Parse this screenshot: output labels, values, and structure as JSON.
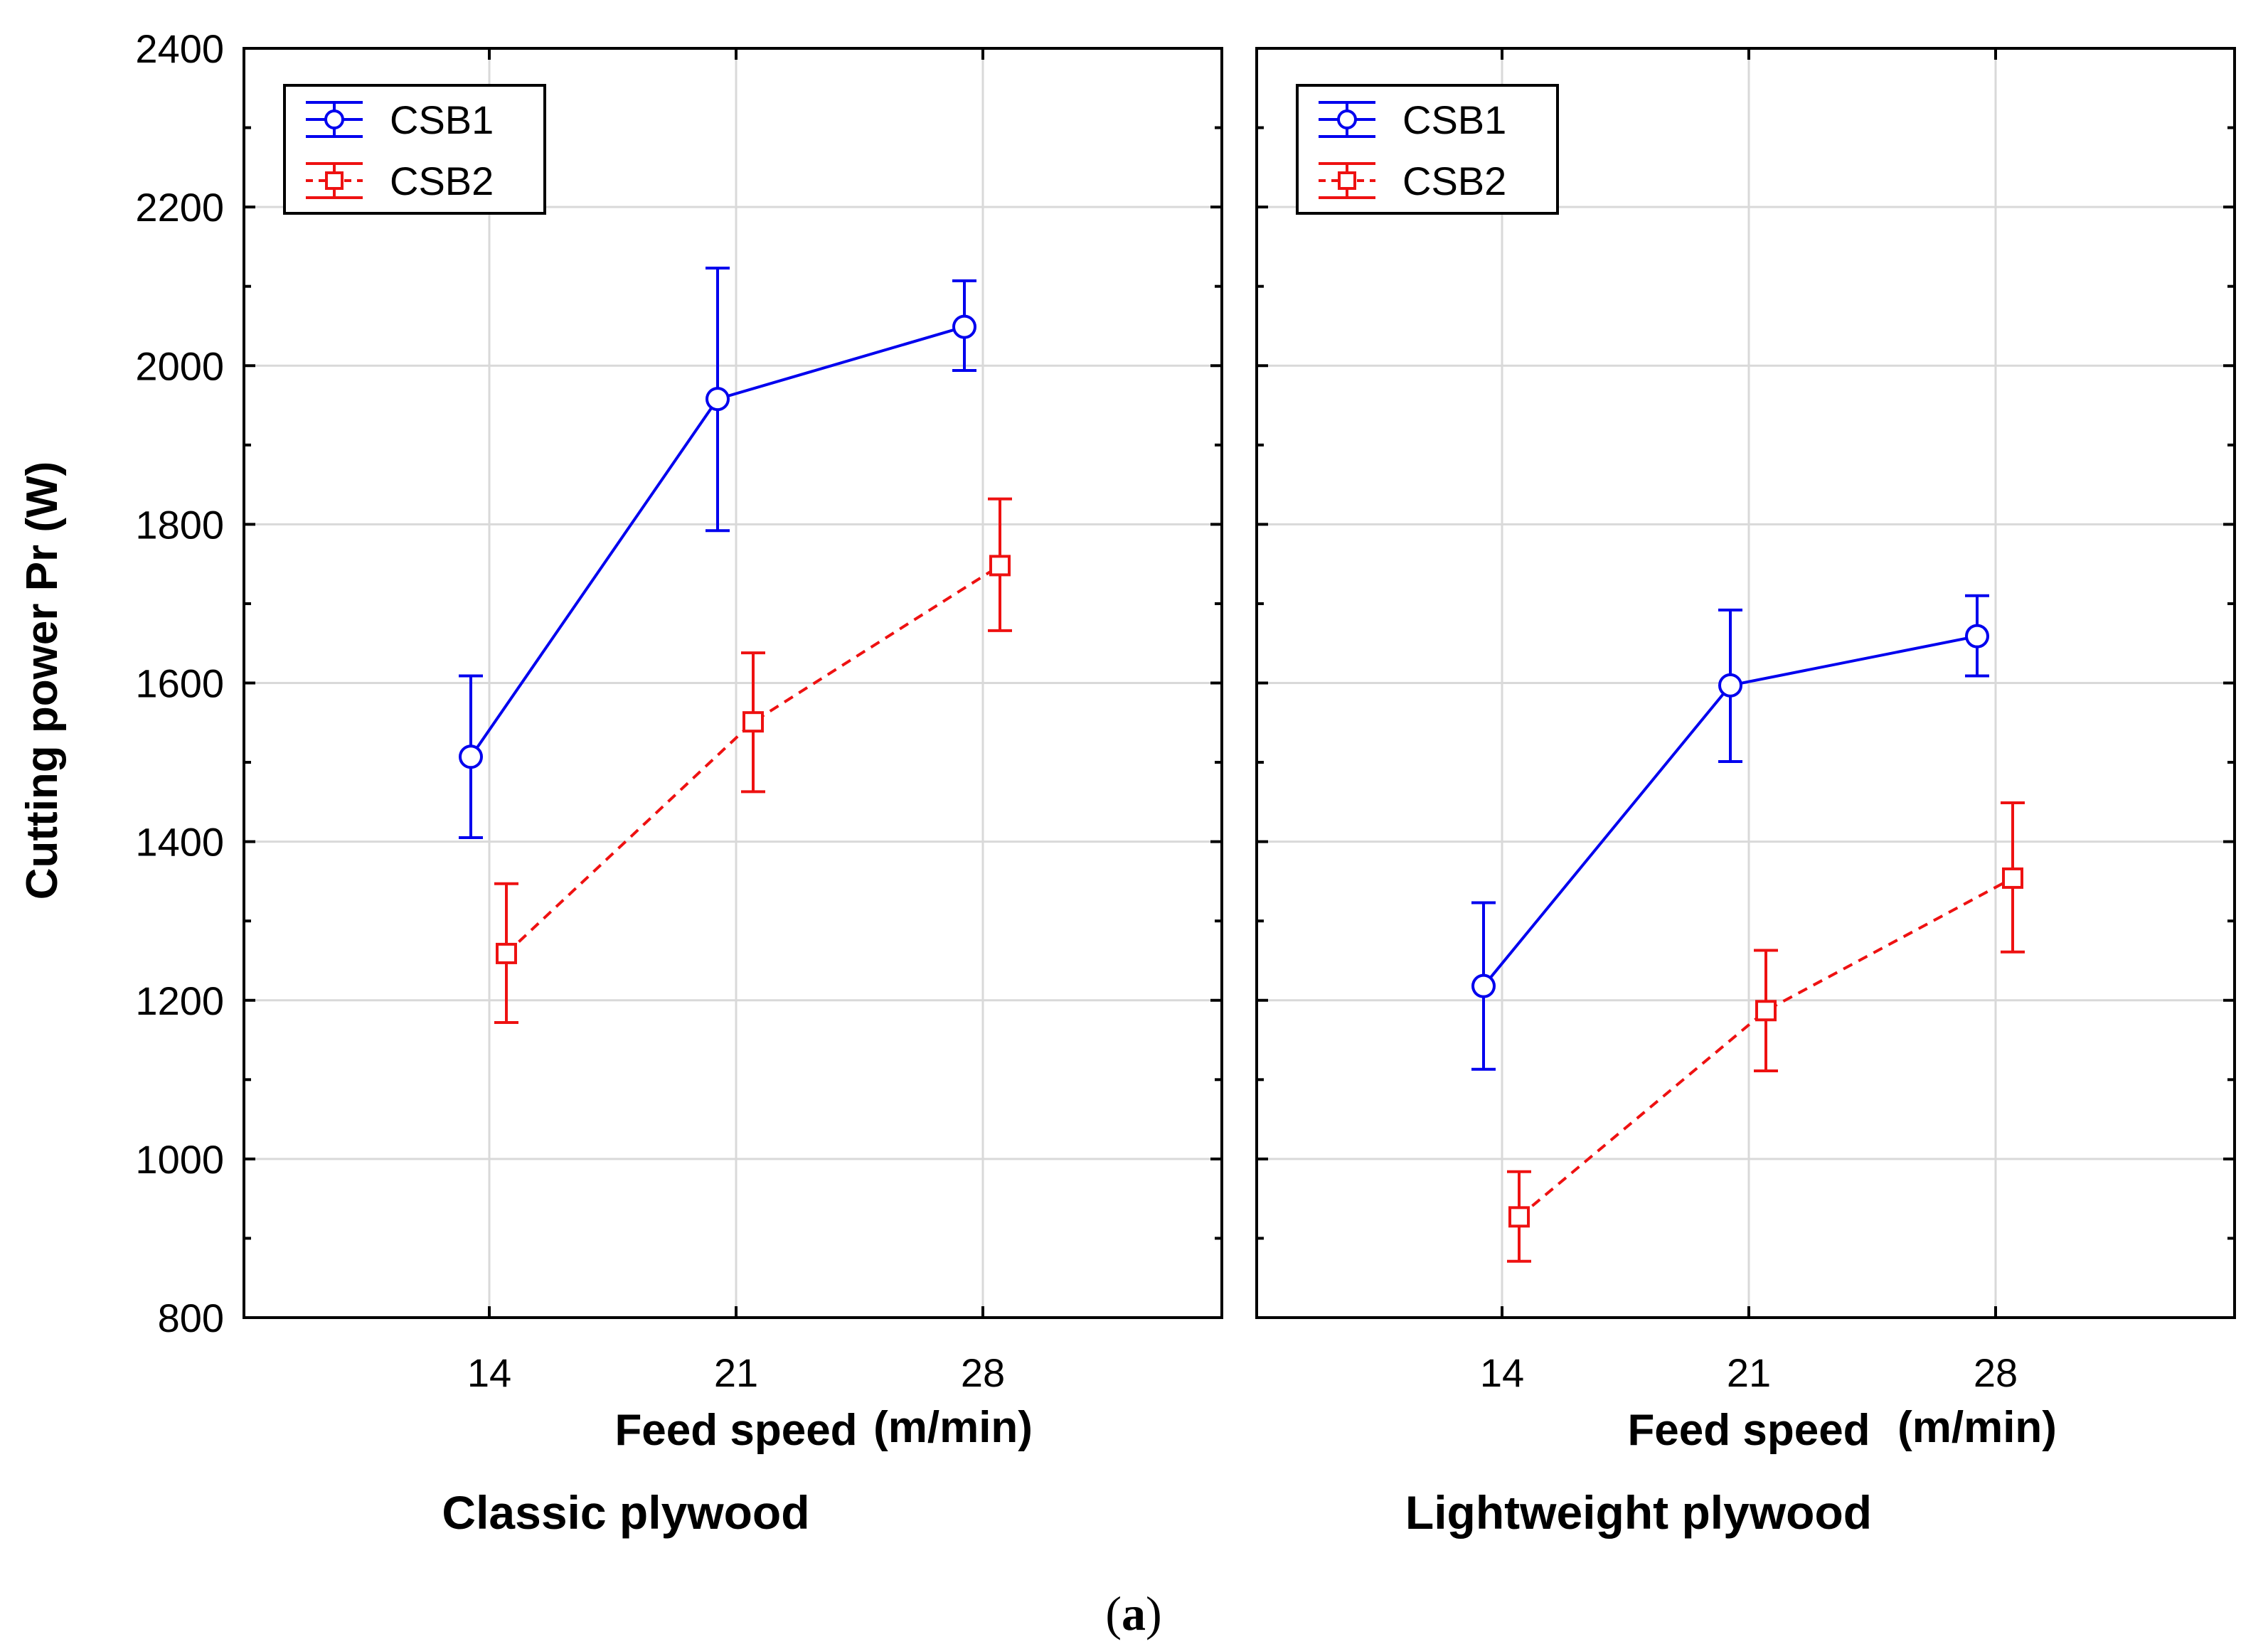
{
  "chart_data": {
    "type": "line",
    "ylabel": "Cutting power Pr (W)",
    "ylim": [
      800,
      2400
    ],
    "yticks": [
      "800",
      "1000",
      "1200",
      "1400",
      "1600",
      "1800",
      "2000",
      "2200",
      "2400"
    ],
    "categories": [
      "14",
      "21",
      "28"
    ],
    "xlabel": "Feed speed",
    "xunit": "(m/min)",
    "grid": true,
    "legend_position": "top-left",
    "caption_letter": "a",
    "panels": [
      {
        "title": "Classic plywood",
        "series": [
          {
            "name": "CSB1",
            "color": "#0000ee",
            "marker": "circle",
            "line": "solid",
            "values": [
              1507,
              1958,
              2049
            ],
            "lower": [
              1405,
              1792,
              1994
            ],
            "upper": [
              1609,
              2123,
              2107
            ]
          },
          {
            "name": "CSB2",
            "color": "#ee1111",
            "marker": "square",
            "line": "dashed",
            "values": [
              1259,
              1551,
              1748
            ],
            "lower": [
              1172,
              1463,
              1666
            ],
            "upper": [
              1347,
              1638,
              1832
            ]
          }
        ]
      },
      {
        "title": "Lightweight plywood",
        "series": [
          {
            "name": "CSB1",
            "color": "#0000ee",
            "marker": "circle",
            "line": "solid",
            "values": [
              1218,
              1597,
              1659
            ],
            "lower": [
              1113,
              1501,
              1609
            ],
            "upper": [
              1323,
              1692,
              1710
            ]
          },
          {
            "name": "CSB2",
            "color": "#ee1111",
            "marker": "square",
            "line": "dashed",
            "values": [
              927,
              1187,
              1354
            ],
            "lower": [
              871,
              1111,
              1261
            ],
            "upper": [
              984,
              1263,
              1449
            ]
          }
        ]
      }
    ]
  }
}
